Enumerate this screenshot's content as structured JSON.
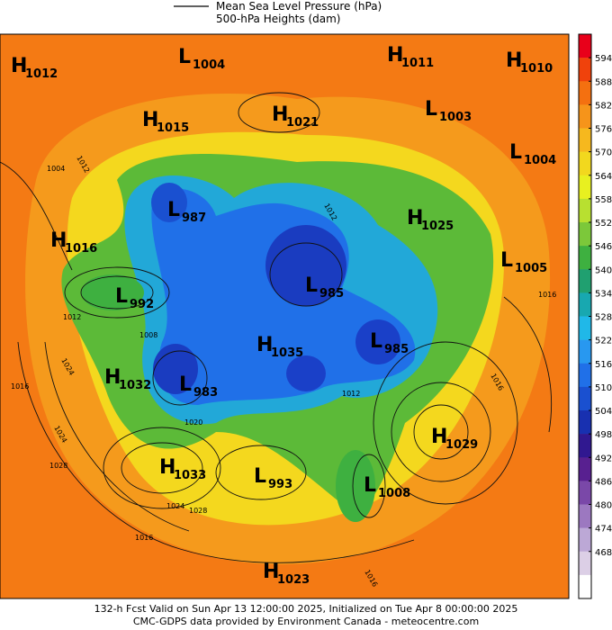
{
  "legend": {
    "lines": [
      "Mean Sea Level Pressure (hPa)",
      "500-hPa Heights (dam)"
    ]
  },
  "centers": [
    {
      "kind": "H",
      "value": "1012"
    },
    {
      "kind": "L",
      "value": "1004"
    },
    {
      "kind": "H",
      "value": "1011"
    },
    {
      "kind": "H",
      "value": "1010"
    },
    {
      "kind": "H",
      "value": "1015"
    },
    {
      "kind": "H",
      "value": "1021"
    },
    {
      "kind": "L",
      "value": "1003"
    },
    {
      "kind": "L",
      "value": "1004"
    },
    {
      "kind": "L",
      "value": "987"
    },
    {
      "kind": "H",
      "value": "1025"
    },
    {
      "kind": "H",
      "value": "1016"
    },
    {
      "kind": "L",
      "value": "1005"
    },
    {
      "kind": "L",
      "value": "992"
    },
    {
      "kind": "L",
      "value": "985"
    },
    {
      "kind": "H",
      "value": "1035"
    },
    {
      "kind": "L",
      "value": "985"
    },
    {
      "kind": "H",
      "value": "1032"
    },
    {
      "kind": "L",
      "value": "983"
    },
    {
      "kind": "H",
      "value": "1029"
    },
    {
      "kind": "H",
      "value": "1033"
    },
    {
      "kind": "L",
      "value": "993"
    },
    {
      "kind": "L",
      "value": "1008"
    },
    {
      "kind": "H",
      "value": "1023"
    }
  ],
  "contour_labels": [
    "1012",
    "1004",
    "1012",
    "1024",
    "1016",
    "1020",
    "1024",
    "1028",
    "1016",
    "1012",
    "1024",
    "1028",
    "1016",
    "1008",
    "1012",
    "1016",
    "1016"
  ],
  "colorbar": {
    "ticks": [
      594,
      588,
      582,
      576,
      570,
      564,
      558,
      552,
      546,
      540,
      534,
      528,
      522,
      516,
      510,
      504,
      498,
      492,
      486,
      480,
      474,
      468
    ],
    "colors": [
      "#e8001a",
      "#f0420c",
      "#f47010",
      "#f6941a",
      "#f6b81e",
      "#f2d81e",
      "#e8f020",
      "#b8e030",
      "#7cc83a",
      "#3eb040",
      "#20a070",
      "#18a8b0",
      "#20b8e8",
      "#2898f0",
      "#2070e8",
      "#1a50d0",
      "#1830b0",
      "#301890",
      "#582090",
      "#7a48a8",
      "#9c78c0",
      "#bca8d6",
      "#dccfe6",
      "#ffffff"
    ]
  },
  "footer": {
    "lines": [
      "132-h Fcst Valid on Sun Apr 13 12:00:00 2025, Initialized on Tue Apr  8 00:00:00 2025",
      "CMC-GDPS data provided by Environment Canada - meteocentre.com"
    ]
  }
}
